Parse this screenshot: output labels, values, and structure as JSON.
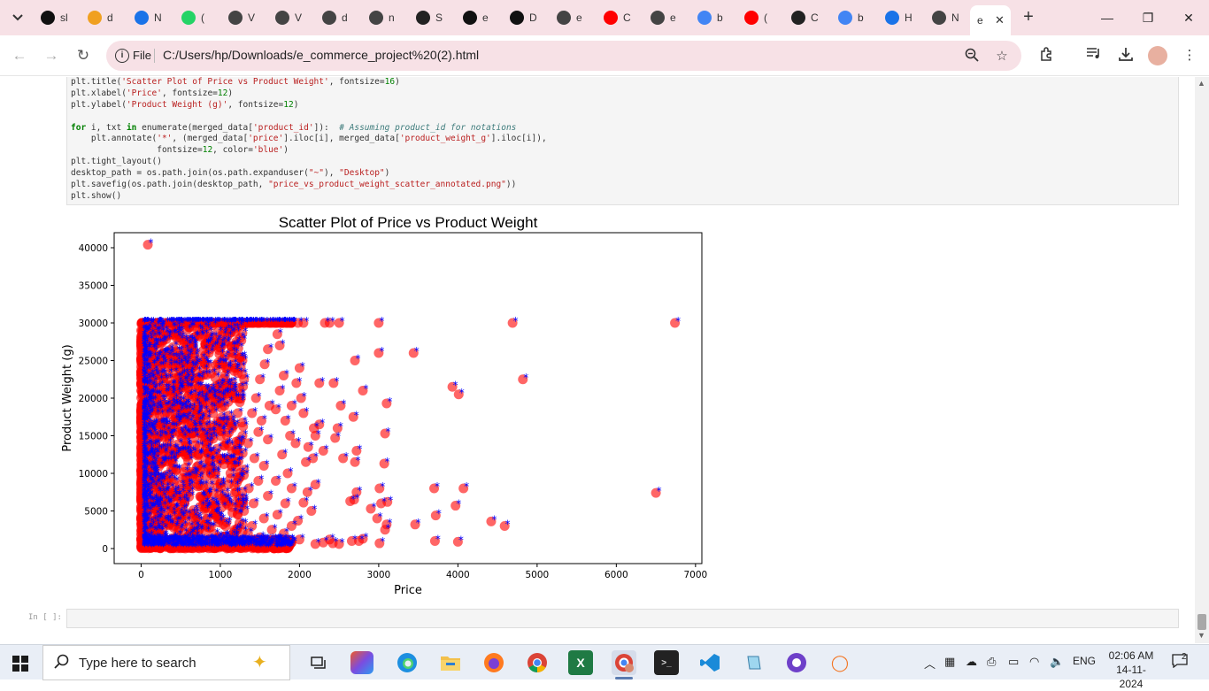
{
  "browser": {
    "tabs": [
      {
        "label": "sl",
        "icon": "github-icon",
        "color": "#111111"
      },
      {
        "label": "d",
        "icon": "orange-app-icon",
        "color": "#f0a020"
      },
      {
        "label": "N",
        "icon": "blue-app-icon",
        "color": "#1a73e8"
      },
      {
        "label": "(",
        "icon": "whatsapp-icon",
        "color": "#25d366"
      },
      {
        "label": "V",
        "icon": "globe-icon",
        "color": "#444444"
      },
      {
        "label": "V",
        "icon": "globe-icon",
        "color": "#444444"
      },
      {
        "label": "d",
        "icon": "globe-icon",
        "color": "#444444"
      },
      {
        "label": "n",
        "icon": "globe-icon",
        "color": "#444444"
      },
      {
        "label": "S",
        "icon": "chatgpt-icon",
        "color": "#222222"
      },
      {
        "label": "e",
        "icon": "github-icon",
        "color": "#111111"
      },
      {
        "label": "D",
        "icon": "github-icon",
        "color": "#111111"
      },
      {
        "label": "e",
        "icon": "globe-icon",
        "color": "#444444"
      },
      {
        "label": "C",
        "icon": "youtube-icon",
        "color": "#ff0000"
      },
      {
        "label": "e",
        "icon": "globe-icon",
        "color": "#444444"
      },
      {
        "label": "b",
        "icon": "google-icon",
        "color": "#4285f4"
      },
      {
        "label": "(",
        "icon": "youtube-icon",
        "color": "#ff0000"
      },
      {
        "label": "C",
        "icon": "chatgpt-icon",
        "color": "#222222"
      },
      {
        "label": "b",
        "icon": "google-icon",
        "color": "#4285f4"
      },
      {
        "label": "H",
        "icon": "history-icon",
        "color": "#1a73e8"
      },
      {
        "label": "N",
        "icon": "globe-icon",
        "color": "#444444"
      }
    ],
    "active_tab": {
      "label": "e",
      "close": "✕"
    },
    "new_tab": "+",
    "window": {
      "minimize": "—",
      "maximize": "❐",
      "close": "✕"
    },
    "protocol": "File",
    "url": "C:/Users/hp/Downloads/e_commerce_project%20(2).html"
  },
  "notebook": {
    "code_lines": [
      [
        [
          "fn",
          "plt.title("
        ],
        [
          "str",
          "'Scatter Plot of Price vs Product Weight'"
        ],
        [
          "fn",
          ", fontsize="
        ],
        [
          "num",
          "16"
        ],
        [
          "fn",
          ")"
        ]
      ],
      [
        [
          "fn",
          "plt.xlabel("
        ],
        [
          "str",
          "'Price'"
        ],
        [
          "fn",
          ", fontsize="
        ],
        [
          "num",
          "12"
        ],
        [
          "fn",
          ")"
        ]
      ],
      [
        [
          "fn",
          "plt.ylabel("
        ],
        [
          "str",
          "'Product Weight (g)'"
        ],
        [
          "fn",
          ", fontsize="
        ],
        [
          "num",
          "12"
        ],
        [
          "fn",
          ")"
        ]
      ],
      [
        [
          "fn",
          ""
        ]
      ],
      [
        [
          "kw",
          "for"
        ],
        [
          "fn",
          " i, txt "
        ],
        [
          "kw",
          "in"
        ],
        [
          "fn",
          " enumerate(merged_data["
        ],
        [
          "str",
          "'product_id'"
        ],
        [
          "fn",
          "]):  "
        ],
        [
          "cm",
          "# Assuming product_id for notations"
        ]
      ],
      [
        [
          "fn",
          "    plt.annotate("
        ],
        [
          "str",
          "'*'"
        ],
        [
          "fn",
          ", (merged_data["
        ],
        [
          "str",
          "'price'"
        ],
        [
          "fn",
          "].iloc[i], merged_data["
        ],
        [
          "str",
          "'product_weight_g'"
        ],
        [
          "fn",
          "].iloc[i]),"
        ]
      ],
      [
        [
          "fn",
          "                 fontsize="
        ],
        [
          "num",
          "12"
        ],
        [
          "fn",
          ", color="
        ],
        [
          "str",
          "'blue'"
        ],
        [
          "fn",
          ")"
        ]
      ],
      [
        [
          "fn",
          "plt.tight_layout()"
        ]
      ],
      [
        [
          "fn",
          "desktop_path = os.path.join(os.path.expanduser("
        ],
        [
          "str",
          "\"~\""
        ],
        [
          "fn",
          "), "
        ],
        [
          "str",
          "\"Desktop\""
        ],
        [
          "fn",
          ")"
        ]
      ],
      [
        [
          "fn",
          "plt.savefig(os.path.join(desktop_path, "
        ],
        [
          "str",
          "\"price_vs_product_weight_scatter_annotated.png\""
        ],
        [
          "fn",
          "))"
        ]
      ],
      [
        [
          "fn",
          "plt.show()"
        ]
      ]
    ],
    "empty_prompt": "In [ ]:"
  },
  "chart_data": {
    "type": "scatter",
    "title": "Scatter Plot of Price vs Product Weight",
    "xlabel": "Price",
    "ylabel": "Product Weight (g)",
    "xlim": [
      -340,
      7080
    ],
    "ylim": [
      -2000,
      42000
    ],
    "xticks": [
      0,
      1000,
      2000,
      3000,
      4000,
      5000,
      6000,
      7000
    ],
    "yticks": [
      0,
      5000,
      10000,
      15000,
      20000,
      25000,
      30000,
      35000,
      40000
    ],
    "point_color": "#ff0000",
    "annotation_color": "#0000ff",
    "annotation_text": "*",
    "points": [
      [
        85,
        40400
      ],
      [
        6740,
        30000
      ],
      [
        4690,
        30000
      ],
      [
        3000,
        30000
      ],
      [
        2500,
        30000
      ],
      [
        2380,
        30000
      ],
      [
        2320,
        30000
      ],
      [
        2050,
        30000
      ],
      [
        1980,
        30000
      ],
      [
        3440,
        26000
      ],
      [
        3000,
        26000
      ],
      [
        2700,
        25000
      ],
      [
        4820,
        22500
      ],
      [
        3930,
        21500
      ],
      [
        4010,
        20500
      ],
      [
        2800,
        21000
      ],
      [
        2430,
        22000
      ],
      [
        2250,
        22000
      ],
      [
        3100,
        19300
      ],
      [
        2680,
        17500
      ],
      [
        2520,
        19000
      ],
      [
        3080,
        15300
      ],
      [
        2480,
        16000
      ],
      [
        2450,
        14700
      ],
      [
        3070,
        11300
      ],
      [
        2720,
        13000
      ],
      [
        2700,
        11500
      ],
      [
        2550,
        12000
      ],
      [
        6500,
        7400
      ],
      [
        4070,
        8000
      ],
      [
        3700,
        8000
      ],
      [
        3970,
        5700
      ],
      [
        3010,
        8000
      ],
      [
        3030,
        6000
      ],
      [
        3110,
        6200
      ],
      [
        2720,
        7500
      ],
      [
        2690,
        6500
      ],
      [
        2640,
        6300
      ],
      [
        3720,
        4400
      ],
      [
        3460,
        3200
      ],
      [
        4420,
        3600
      ],
      [
        4590,
        3000
      ],
      [
        3100,
        3200
      ],
      [
        3080,
        2500
      ],
      [
        2980,
        4000
      ],
      [
        2900,
        5300
      ],
      [
        3710,
        1000
      ],
      [
        4000,
        900
      ],
      [
        3010,
        700
      ],
      [
        2750,
        1000
      ],
      [
        2800,
        1300
      ],
      [
        2660,
        1000
      ],
      [
        2500,
        600
      ],
      [
        2420,
        700
      ],
      [
        2380,
        1200
      ],
      [
        2300,
        800
      ],
      [
        2200,
        600
      ],
      [
        2000,
        1200
      ],
      [
        1980,
        3700
      ],
      [
        2050,
        6100
      ],
      [
        2150,
        5000
      ],
      [
        2100,
        7500
      ],
      [
        2200,
        8500
      ],
      [
        2080,
        11500
      ],
      [
        2170,
        12000
      ],
      [
        2110,
        13500
      ],
      [
        2200,
        15000
      ],
      [
        2300,
        13000
      ],
      [
        2250,
        16500
      ],
      [
        2180,
        16000
      ],
      [
        2050,
        18000
      ],
      [
        2020,
        20000
      ],
      [
        1960,
        22000
      ],
      [
        2000,
        24000
      ],
      [
        1800,
        23000
      ],
      [
        1750,
        21000
      ],
      [
        1900,
        19000
      ],
      [
        1820,
        17000
      ],
      [
        1700,
        18500
      ],
      [
        1880,
        15000
      ],
      [
        1950,
        14000
      ],
      [
        1780,
        12500
      ],
      [
        1850,
        10000
      ],
      [
        1700,
        9000
      ],
      [
        1900,
        8000
      ],
      [
        1820,
        6000
      ],
      [
        1720,
        4500
      ],
      [
        1900,
        3000
      ],
      [
        1800,
        2000
      ],
      [
        1750,
        27000
      ],
      [
        1720,
        28500
      ],
      [
        1600,
        26500
      ],
      [
        1560,
        24500
      ],
      [
        1500,
        22500
      ],
      [
        1450,
        20000
      ],
      [
        1620,
        19000
      ],
      [
        1520,
        17000
      ],
      [
        1400,
        18000
      ],
      [
        1480,
        15500
      ],
      [
        1600,
        14500
      ],
      [
        1350,
        14000
      ],
      [
        1430,
        12000
      ],
      [
        1550,
        11000
      ],
      [
        1300,
        10500
      ],
      [
        1480,
        9000
      ],
      [
        1360,
        8000
      ],
      [
        1600,
        7000
      ],
      [
        1420,
        6000
      ],
      [
        1300,
        5000
      ],
      [
        1550,
        4000
      ],
      [
        1400,
        3000
      ],
      [
        1650,
        2500
      ],
      [
        1500,
        1500
      ],
      [
        1350,
        2000
      ],
      [
        1250,
        28000
      ],
      [
        1100,
        29000
      ],
      [
        1200,
        27500
      ],
      [
        1280,
        25000
      ],
      [
        1180,
        24000
      ],
      [
        1300,
        22500
      ],
      [
        1150,
        21500
      ],
      [
        1250,
        20500
      ],
      [
        1100,
        19500
      ],
      [
        1220,
        18000
      ],
      [
        1050,
        17000
      ],
      [
        1150,
        16000
      ],
      [
        1280,
        15000
      ],
      [
        1080,
        14000
      ],
      [
        1200,
        13000
      ],
      [
        1050,
        12000
      ],
      [
        1150,
        11000
      ],
      [
        1250,
        9500
      ],
      [
        1100,
        8500
      ],
      [
        1200,
        7500
      ],
      [
        1050,
        6500
      ],
      [
        1150,
        5500
      ],
      [
        1220,
        4500
      ],
      [
        1080,
        3500
      ],
      [
        1180,
        2500
      ],
      [
        1050,
        1500
      ]
    ]
  },
  "taskbar": {
    "search_placeholder": "Type here to search",
    "language": "ENG",
    "time": "02:06 AM",
    "date": "14-11-2024",
    "notifications": "2"
  }
}
